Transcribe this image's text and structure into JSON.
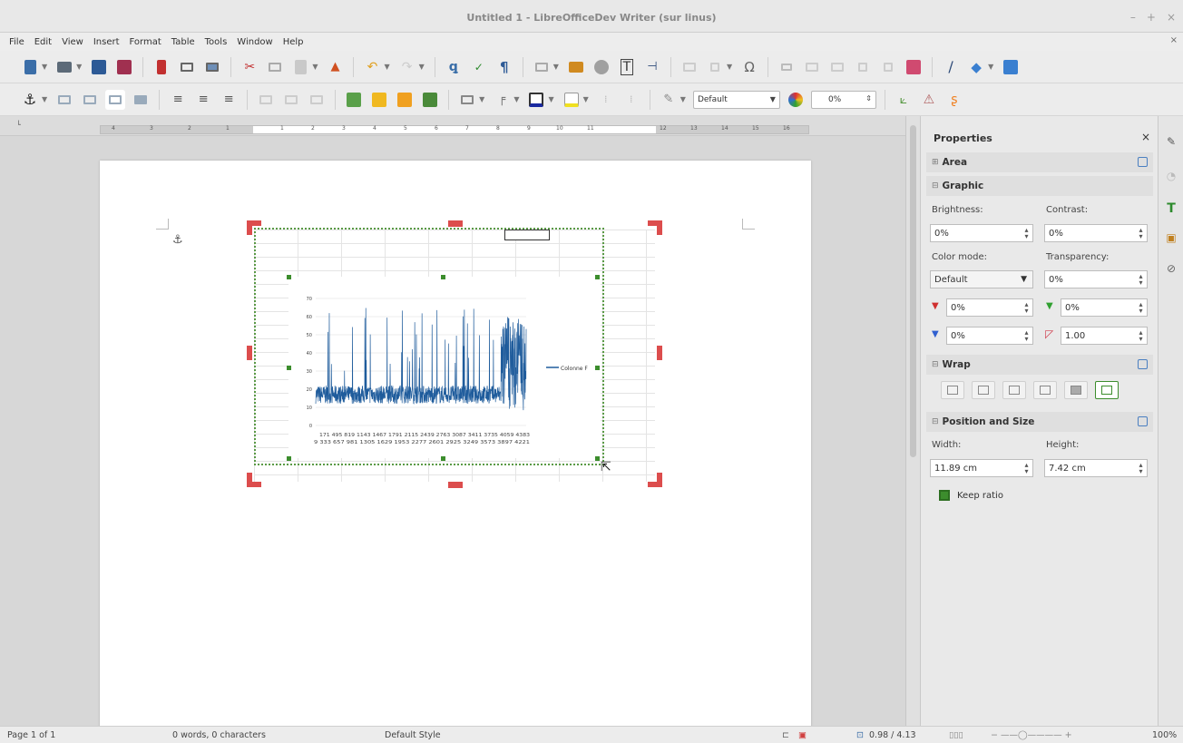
{
  "window": {
    "title": "Untitled 1 - LibreOfficeDev Writer (sur linus)",
    "controls": [
      "–",
      "+",
      "×"
    ]
  },
  "menu": {
    "items": [
      "File",
      "Edit",
      "View",
      "Insert",
      "Format",
      "Table",
      "Tools",
      "Window",
      "Help"
    ],
    "close_label": "×"
  },
  "toolbar2": {
    "style_name": "Default",
    "transparency": "0%"
  },
  "ruler": {
    "left_ticks": [
      "4",
      "3",
      "2",
      "1"
    ],
    "right_ticks": [
      "1",
      "2",
      "3",
      "4",
      "5",
      "6",
      "7",
      "8",
      "9",
      "10",
      "11",
      "12",
      "13",
      "14",
      "15",
      "16"
    ]
  },
  "chart_data": {
    "type": "line",
    "title": "",
    "xlabel": "",
    "ylabel": "",
    "ylim": [
      0,
      70
    ],
    "yticks": [
      "0",
      "10",
      "20",
      "30",
      "40",
      "50",
      "60",
      "70"
    ],
    "x_tick_labels_row1": "171 495 819 1143 1467 1791 2115 2439 2763 3087 3411 3735 4059 4383",
    "x_tick_labels_row2": "9 333 657 981 1305 1629 1953 2277 2601 2925 3249 3573 3897 4221",
    "series": [
      {
        "name": "Colonne F",
        "color": "#1f5c9c"
      }
    ],
    "legend": "right",
    "grid": true
  },
  "sidebar": {
    "title": "Properties",
    "close": "×",
    "sections": {
      "area": "Area",
      "graphic": "Graphic",
      "wrap": "Wrap",
      "position": "Position and Size"
    },
    "brightness_label": "Brightness:",
    "brightness_value": "0%",
    "contrast_label": "Contrast:",
    "contrast_value": "0%",
    "color_mode_label": "Color mode:",
    "color_mode_value": "Default",
    "transparency_label": "Transparency:",
    "transparency_value": "0%",
    "red_value": "0%",
    "green_value": "0%",
    "blue_value": "0%",
    "gamma_value": "1.00",
    "width_label": "Width:",
    "width_value": "11.89 cm",
    "height_label": "Height:",
    "height_value": "7.42 cm",
    "keep_ratio": "Keep ratio"
  },
  "status": {
    "page": "Page 1 of 1",
    "words": "0 words, 0 characters",
    "style": "Default Style",
    "position": "0.98 / 4.13",
    "zoom": "100%"
  }
}
